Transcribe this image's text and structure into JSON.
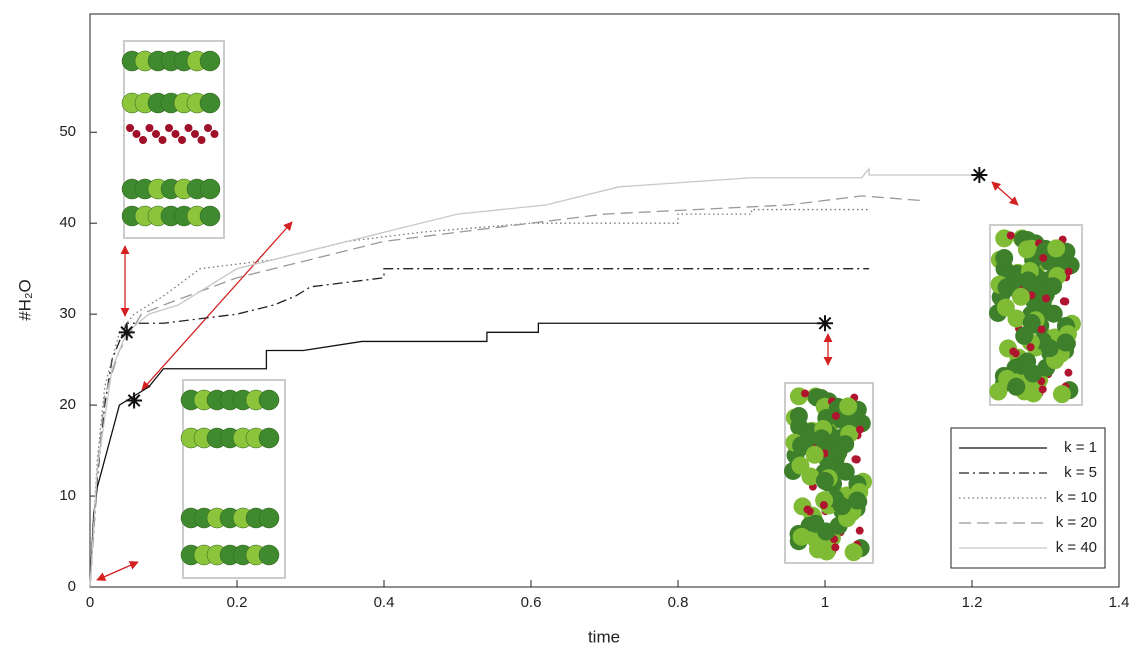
{
  "chart_data": {
    "type": "line",
    "xlabel": "time",
    "ylabel": "#H₂O",
    "xlim": [
      0,
      1.4
    ],
    "ylim": [
      0,
      63
    ],
    "xticks": [
      0,
      0.2,
      0.4,
      0.6,
      0.8,
      1,
      1.2,
      1.4
    ],
    "yticks": [
      0,
      10,
      20,
      30,
      40,
      50
    ],
    "legend": "lower right",
    "series": [
      {
        "name": "k = 1",
        "color": "#111111",
        "dash": "solid",
        "x": [
          0,
          0.005,
          0.01,
          0.02,
          0.03,
          0.04,
          0.06,
          0.08,
          0.1,
          0.24,
          0.24,
          0.29,
          0.37,
          0.54,
          0.54,
          0.61,
          0.61,
          1.0
        ],
        "values": [
          0,
          8,
          11,
          14,
          17,
          20,
          21,
          22,
          24,
          24,
          26,
          26,
          27,
          27,
          28,
          28,
          29,
          29
        ]
      },
      {
        "name": "k = 5",
        "color": "#222222",
        "dash": "dashdot",
        "x": [
          0,
          0.01,
          0.02,
          0.03,
          0.05,
          0.1,
          0.2,
          0.25,
          0.28,
          0.3,
          0.4,
          0.4,
          1.06
        ],
        "values": [
          0,
          12,
          20,
          25,
          29,
          29,
          30,
          31,
          32,
          33,
          34,
          35,
          35
        ]
      },
      {
        "name": "k = 10",
        "color": "#777777",
        "dash": "dotted",
        "x": [
          0,
          0.01,
          0.02,
          0.04,
          0.06,
          0.1,
          0.15,
          0.25,
          0.35,
          0.45,
          0.6,
          0.8,
          0.8,
          0.9,
          0.9,
          1.06
        ],
        "values": [
          0,
          14,
          22,
          28,
          30,
          32,
          35,
          36,
          38,
          39,
          40,
          40,
          41,
          41,
          41.5,
          41.5
        ]
      },
      {
        "name": "k = 20",
        "color": "#999999",
        "dash": "dashed",
        "x": [
          0,
          0.01,
          0.02,
          0.04,
          0.07,
          0.1,
          0.2,
          0.3,
          0.4,
          0.5,
          0.6,
          0.7,
          0.95,
          1.05,
          1.13
        ],
        "values": [
          0,
          13,
          21,
          26,
          30,
          31,
          34,
          36,
          38,
          39,
          40,
          41,
          42,
          43,
          42.5
        ]
      },
      {
        "name": "k = 40",
        "color": "#c8c8c8",
        "dash": "solid",
        "x": [
          0,
          0.01,
          0.03,
          0.05,
          0.08,
          0.12,
          0.2,
          0.3,
          0.4,
          0.5,
          0.62,
          0.72,
          0.9,
          1.05,
          1.06,
          1.06,
          1.21
        ],
        "values": [
          0,
          13,
          24,
          28,
          30,
          31,
          35,
          37,
          39,
          41,
          42,
          44,
          45,
          45,
          46,
          45.3,
          45.3
        ]
      }
    ],
    "markers": {
      "x": [
        0.05,
        0.06,
        1.0,
        1.21
      ],
      "values": [
        28,
        20.5,
        29,
        45.3
      ]
    }
  }
}
